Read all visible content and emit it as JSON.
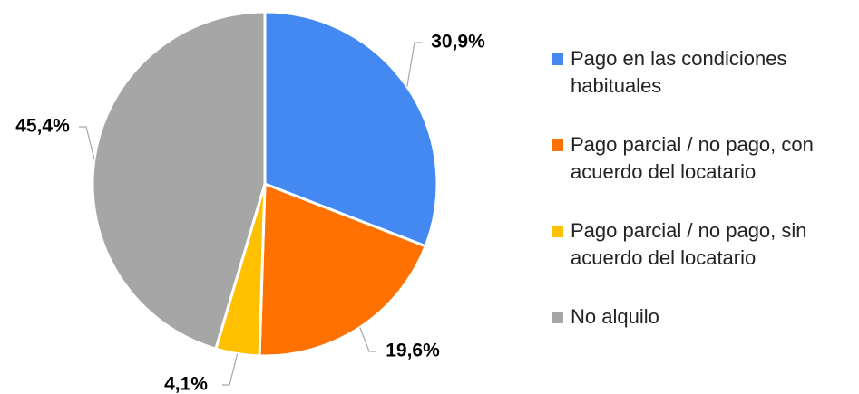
{
  "chart_data": {
    "type": "pie",
    "series": [
      {
        "name": "Pago en las condiciones habituales",
        "color": "#4488f2"
      },
      {
        "name": "Pago parcial / no pago, con acuerdo del locatario",
        "color": "#ff7100"
      },
      {
        "name": "Pago parcial / no pago, sin acuerdo del locatario",
        "color": "#ffc000"
      },
      {
        "name": "No alquilo",
        "color": "#a6a6a6"
      }
    ],
    "values": [
      30.9,
      19.6,
      4.1,
      45.4
    ],
    "value_labels": [
      "30,9%",
      "19,6%",
      "4,1%",
      "45,4%"
    ],
    "legend": "right"
  }
}
